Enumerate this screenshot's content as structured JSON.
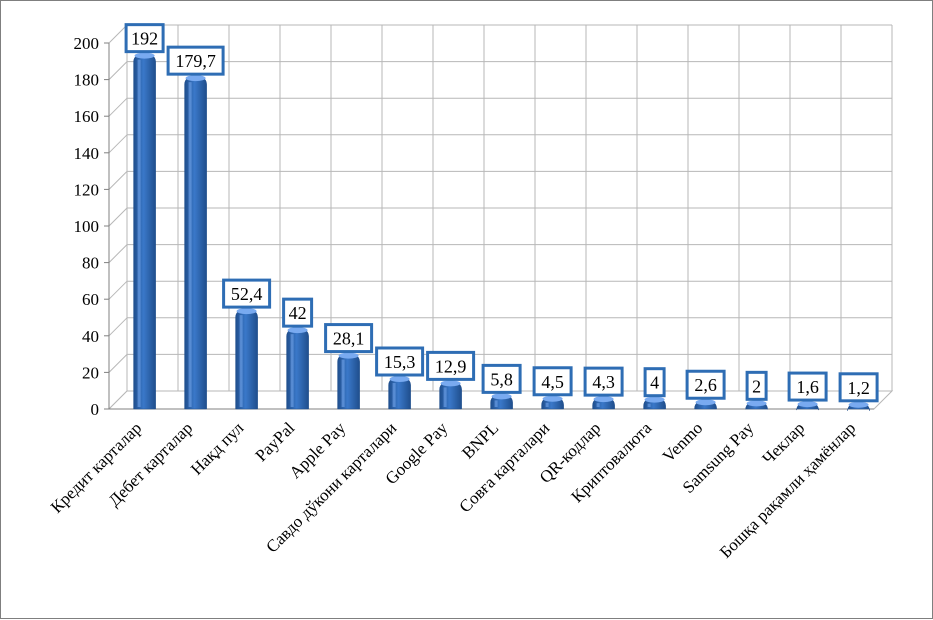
{
  "chart_data": {
    "type": "bar",
    "title": "",
    "xlabel": "",
    "ylabel": "",
    "ylim": [
      0,
      200
    ],
    "yticks": [
      0,
      20,
      40,
      60,
      80,
      100,
      120,
      140,
      160,
      180,
      200
    ],
    "grid": true,
    "legend": "none",
    "categories": [
      "Кредит карталар",
      "Дебет карталар",
      "Нақд пул",
      "PayPal",
      "Apple Pay",
      "Савдо дўкони карталари",
      "Google Pay",
      "BNPL",
      "Совға карталари",
      "QR-кодлар",
      "Криптовалюта",
      "Venmo",
      "Samsung Pay",
      "Чеклар",
      "Бошқа рақамли ҳамёнлар"
    ],
    "values": [
      192,
      179.7,
      52.4,
      42,
      28.1,
      15.3,
      12.9,
      5.8,
      4.5,
      4.3,
      4,
      2.6,
      2,
      1.6,
      1.2
    ],
    "data_labels": [
      "192",
      "179,7",
      "52,4",
      "42",
      "28,1",
      "15,3",
      "12,9",
      "5,8",
      "4,5",
      "4,3",
      "4",
      "2,6",
      "2",
      "1,6",
      "1,2"
    ],
    "colors": {
      "bar": "#3a78c9",
      "bar_dark": "#1f4e8c",
      "bar_light": "#79aaf0",
      "label_border": "#2e6db4",
      "grid": "#b7b7b7",
      "axis": "#808080"
    }
  }
}
